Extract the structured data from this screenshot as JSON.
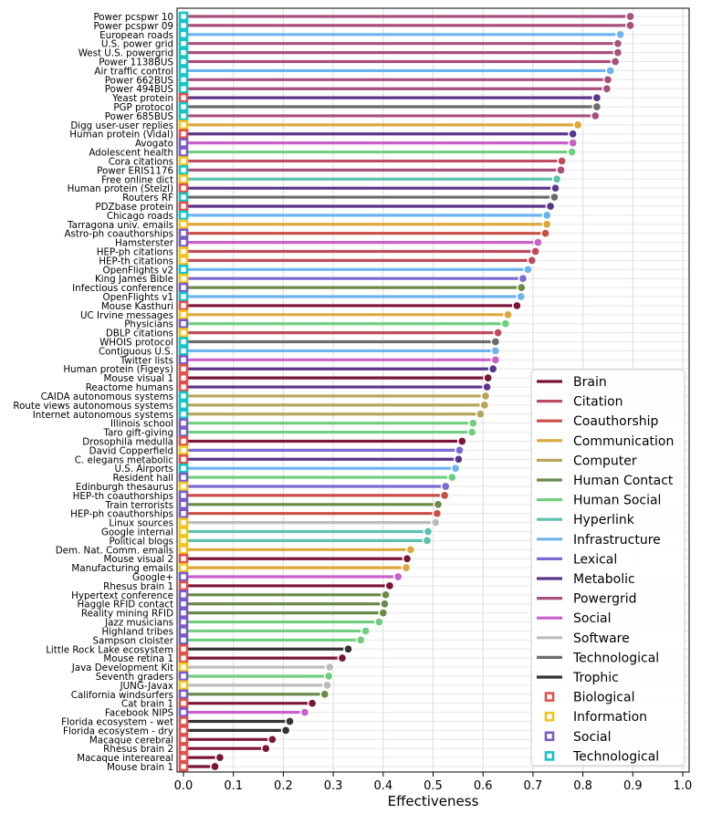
{
  "chart_data": {
    "type": "lollipop",
    "xlabel": "Effectiveness",
    "xlim": [
      0.0,
      1.0
    ],
    "xticks": [
      "0.0",
      "0.1",
      "0.2",
      "0.3",
      "0.4",
      "0.5",
      "0.6",
      "0.7",
      "0.8",
      "0.9",
      "1.0"
    ],
    "grid": true,
    "legend_position": "bottom-right",
    "domain_colors": {
      "Brain": "#7b1538",
      "Citation": "#bf4b5e",
      "Coauthorship": "#c94f46",
      "Communication": "#dda73c",
      "Computer": "#b5a55a",
      "Human Contact": "#6a8a48",
      "Human Social": "#6fcf7f",
      "Hyperlink": "#5cc2ae",
      "Infrastructure": "#6cb3f0",
      "Lexical": "#7b69d4",
      "Metabolic": "#5b3589",
      "Powergrid": "#a84f7c",
      "Social": "#c95fca",
      "Software": "#bdbdbd",
      "Technological": "#6b6b6b",
      "Trophic": "#333333"
    },
    "category_colors": {
      "Biological": "#e2504b",
      "Information": "#f2c31b",
      "Social": "#7a5cc4",
      "Technological": "#14c4c7"
    },
    "legend_domains": [
      "Brain",
      "Citation",
      "Coauthorship",
      "Communication",
      "Computer",
      "Human Contact",
      "Human Social",
      "Hyperlink",
      "Infrastructure",
      "Lexical",
      "Metabolic",
      "Powergrid",
      "Social",
      "Software",
      "Technological",
      "Trophic"
    ],
    "legend_categories": [
      "Biological",
      "Information",
      "Social",
      "Technological"
    ],
    "networks": [
      {
        "name": "Power pcspwr 10",
        "value": 0.895,
        "domain": "Powergrid",
        "category": "Technological"
      },
      {
        "name": "Power pcspwr 09",
        "value": 0.895,
        "domain": "Powergrid",
        "category": "Technological"
      },
      {
        "name": "European roads",
        "value": 0.875,
        "domain": "Infrastructure",
        "category": "Technological"
      },
      {
        "name": "U.S. power grid",
        "value": 0.87,
        "domain": "Powergrid",
        "category": "Technological"
      },
      {
        "name": "West U.S. powergrid",
        "value": 0.87,
        "domain": "Powergrid",
        "category": "Technological"
      },
      {
        "name": "Power 1138BUS",
        "value": 0.865,
        "domain": "Powergrid",
        "category": "Technological"
      },
      {
        "name": "Air traffic control",
        "value": 0.855,
        "domain": "Infrastructure",
        "category": "Technological"
      },
      {
        "name": "Power 662BUS",
        "value": 0.85,
        "domain": "Powergrid",
        "category": "Technological"
      },
      {
        "name": "Power 494BUS",
        "value": 0.848,
        "domain": "Powergrid",
        "category": "Technological"
      },
      {
        "name": "Yeast protein",
        "value": 0.828,
        "domain": "Metabolic",
        "category": "Biological"
      },
      {
        "name": "PGP protocol",
        "value": 0.828,
        "domain": "Technological",
        "category": "Technological"
      },
      {
        "name": "Power 685BUS",
        "value": 0.825,
        "domain": "Powergrid",
        "category": "Technological"
      },
      {
        "name": "Digg user-user replies",
        "value": 0.79,
        "domain": "Communication",
        "category": "Information"
      },
      {
        "name": "Human protein (Vidal)",
        "value": 0.78,
        "domain": "Metabolic",
        "category": "Biological"
      },
      {
        "name": "Avogato",
        "value": 0.78,
        "domain": "Social",
        "category": "Social"
      },
      {
        "name": "Adolescent health",
        "value": 0.778,
        "domain": "Human Social",
        "category": "Social"
      },
      {
        "name": "Cora citations",
        "value": 0.758,
        "domain": "Citation",
        "category": "Information"
      },
      {
        "name": "Power ERIS1176",
        "value": 0.756,
        "domain": "Powergrid",
        "category": "Technological"
      },
      {
        "name": "Free online dict",
        "value": 0.748,
        "domain": "Hyperlink",
        "category": "Information"
      },
      {
        "name": "Human protein (Stelzl)",
        "value": 0.745,
        "domain": "Metabolic",
        "category": "Biological"
      },
      {
        "name": "Routers RF",
        "value": 0.743,
        "domain": "Technological",
        "category": "Technological"
      },
      {
        "name": "PDZbase protein",
        "value": 0.735,
        "domain": "Metabolic",
        "category": "Biological"
      },
      {
        "name": "Chicago roads",
        "value": 0.728,
        "domain": "Infrastructure",
        "category": "Technological"
      },
      {
        "name": "Tarragona univ. emails",
        "value": 0.728,
        "domain": "Communication",
        "category": "Information"
      },
      {
        "name": "Astro-ph coauthorships",
        "value": 0.725,
        "domain": "Coauthorship",
        "category": "Social"
      },
      {
        "name": "Hamsterster",
        "value": 0.71,
        "domain": "Social",
        "category": "Social"
      },
      {
        "name": "HEP-ph citations",
        "value": 0.705,
        "domain": "Citation",
        "category": "Information"
      },
      {
        "name": "HEP-th citations",
        "value": 0.698,
        "domain": "Citation",
        "category": "Information"
      },
      {
        "name": "OpenFlights v2",
        "value": 0.69,
        "domain": "Infrastructure",
        "category": "Technological"
      },
      {
        "name": "King James Bible",
        "value": 0.68,
        "domain": "Lexical",
        "category": "Information"
      },
      {
        "name": "Infectious conference",
        "value": 0.677,
        "domain": "Human Contact",
        "category": "Social"
      },
      {
        "name": "OpenFlights v1",
        "value": 0.676,
        "domain": "Infrastructure",
        "category": "Technological"
      },
      {
        "name": "Mouse Kasthuri",
        "value": 0.668,
        "domain": "Brain",
        "category": "Biological"
      },
      {
        "name": "UC Irvine messages",
        "value": 0.65,
        "domain": "Communication",
        "category": "Information"
      },
      {
        "name": "Physicians",
        "value": 0.645,
        "domain": "Human Social",
        "category": "Social"
      },
      {
        "name": "DBLP citations",
        "value": 0.63,
        "domain": "Citation",
        "category": "Information"
      },
      {
        "name": "WHOIS protocol",
        "value": 0.625,
        "domain": "Technological",
        "category": "Technological"
      },
      {
        "name": "Contiguous U.S.",
        "value": 0.625,
        "domain": "Infrastructure",
        "category": "Technological"
      },
      {
        "name": "Twitter lists",
        "value": 0.625,
        "domain": "Social",
        "category": "Social"
      },
      {
        "name": "Human protein (Figeys)",
        "value": 0.62,
        "domain": "Metabolic",
        "category": "Biological"
      },
      {
        "name": "Mouse visual 1",
        "value": 0.61,
        "domain": "Brain",
        "category": "Biological"
      },
      {
        "name": "Reactome humans",
        "value": 0.608,
        "domain": "Metabolic",
        "category": "Biological"
      },
      {
        "name": "CAIDA autonomous systems",
        "value": 0.605,
        "domain": "Computer",
        "category": "Technological"
      },
      {
        "name": "Route views autonomous systems",
        "value": 0.603,
        "domain": "Computer",
        "category": "Technological"
      },
      {
        "name": "Internet autonomous systems",
        "value": 0.595,
        "domain": "Computer",
        "category": "Technological"
      },
      {
        "name": "Illinois school",
        "value": 0.58,
        "domain": "Human Social",
        "category": "Social"
      },
      {
        "name": "Taro gift-giving",
        "value": 0.578,
        "domain": "Human Social",
        "category": "Social"
      },
      {
        "name": "Drosophila medulla",
        "value": 0.558,
        "domain": "Brain",
        "category": "Biological"
      },
      {
        "name": "David Copperfield",
        "value": 0.553,
        "domain": "Lexical",
        "category": "Information"
      },
      {
        "name": "C. elegans metabolic",
        "value": 0.551,
        "domain": "Metabolic",
        "category": "Biological"
      },
      {
        "name": "U.S. Airports",
        "value": 0.545,
        "domain": "Infrastructure",
        "category": "Technological"
      },
      {
        "name": "Resident hall",
        "value": 0.538,
        "domain": "Human Social",
        "category": "Social"
      },
      {
        "name": "Edinburgh thesaurus",
        "value": 0.525,
        "domain": "Lexical",
        "category": "Information"
      },
      {
        "name": "HEP-th coauthorships",
        "value": 0.523,
        "domain": "Coauthorship",
        "category": "Social"
      },
      {
        "name": "Train terrorists",
        "value": 0.51,
        "domain": "Human Contact",
        "category": "Social"
      },
      {
        "name": "HEP-ph coauthorships",
        "value": 0.508,
        "domain": "Coauthorship",
        "category": "Social"
      },
      {
        "name": "Linux sources",
        "value": 0.505,
        "domain": "Software",
        "category": "Information"
      },
      {
        "name": "Google internal",
        "value": 0.49,
        "domain": "Hyperlink",
        "category": "Information"
      },
      {
        "name": "Political blogs",
        "value": 0.488,
        "domain": "Hyperlink",
        "category": "Information"
      },
      {
        "name": "Dem. Nat. Comm. emails",
        "value": 0.455,
        "domain": "Communication",
        "category": "Information"
      },
      {
        "name": "Mouse visual 2",
        "value": 0.448,
        "domain": "Brain",
        "category": "Biological"
      },
      {
        "name": "Manufacturing emails",
        "value": 0.446,
        "domain": "Communication",
        "category": "Information"
      },
      {
        "name": "Google+",
        "value": 0.43,
        "domain": "Social",
        "category": "Social"
      },
      {
        "name": "Rhesus brain 1",
        "value": 0.413,
        "domain": "Brain",
        "category": "Biological"
      },
      {
        "name": "Hypertext conference",
        "value": 0.405,
        "domain": "Human Contact",
        "category": "Social"
      },
      {
        "name": "Haggle RFID contact",
        "value": 0.403,
        "domain": "Human Contact",
        "category": "Social"
      },
      {
        "name": "Reality mining RFID",
        "value": 0.4,
        "domain": "Human Contact",
        "category": "Social"
      },
      {
        "name": "Jazz musicians",
        "value": 0.392,
        "domain": "Human Social",
        "category": "Social"
      },
      {
        "name": "Highland tribes",
        "value": 0.365,
        "domain": "Human Social",
        "category": "Social"
      },
      {
        "name": "Sampson cloister",
        "value": 0.355,
        "domain": "Human Social",
        "category": "Social"
      },
      {
        "name": "Little Rock Lake ecosystem",
        "value": 0.33,
        "domain": "Trophic",
        "category": "Biological"
      },
      {
        "name": "Mouse retina 1",
        "value": 0.318,
        "domain": "Brain",
        "category": "Biological"
      },
      {
        "name": "Java Development Kit",
        "value": 0.293,
        "domain": "Software",
        "category": "Information"
      },
      {
        "name": "Seventh graders",
        "value": 0.291,
        "domain": "Human Social",
        "category": "Social"
      },
      {
        "name": "JUNG-Javax",
        "value": 0.288,
        "domain": "Software",
        "category": "Information"
      },
      {
        "name": "California windsurfers",
        "value": 0.283,
        "domain": "Human Contact",
        "category": "Social"
      },
      {
        "name": "Cat brain 1",
        "value": 0.258,
        "domain": "Brain",
        "category": "Biological"
      },
      {
        "name": "Facebook NIPS",
        "value": 0.243,
        "domain": "Social",
        "category": "Social"
      },
      {
        "name": "Florida ecosystem - wet",
        "value": 0.213,
        "domain": "Trophic",
        "category": "Biological"
      },
      {
        "name": "Florida ecosystem - dry",
        "value": 0.205,
        "domain": "Trophic",
        "category": "Biological"
      },
      {
        "name": "Macaque cerebral",
        "value": 0.178,
        "domain": "Brain",
        "category": "Biological"
      },
      {
        "name": "Rhesus brain 2",
        "value": 0.165,
        "domain": "Brain",
        "category": "Biological"
      },
      {
        "name": "Macaque intereareal",
        "value": 0.073,
        "domain": "Brain",
        "category": "Biological"
      },
      {
        "name": "Mouse brain 1",
        "value": 0.063,
        "domain": "Brain",
        "category": "Biological"
      }
    ]
  }
}
